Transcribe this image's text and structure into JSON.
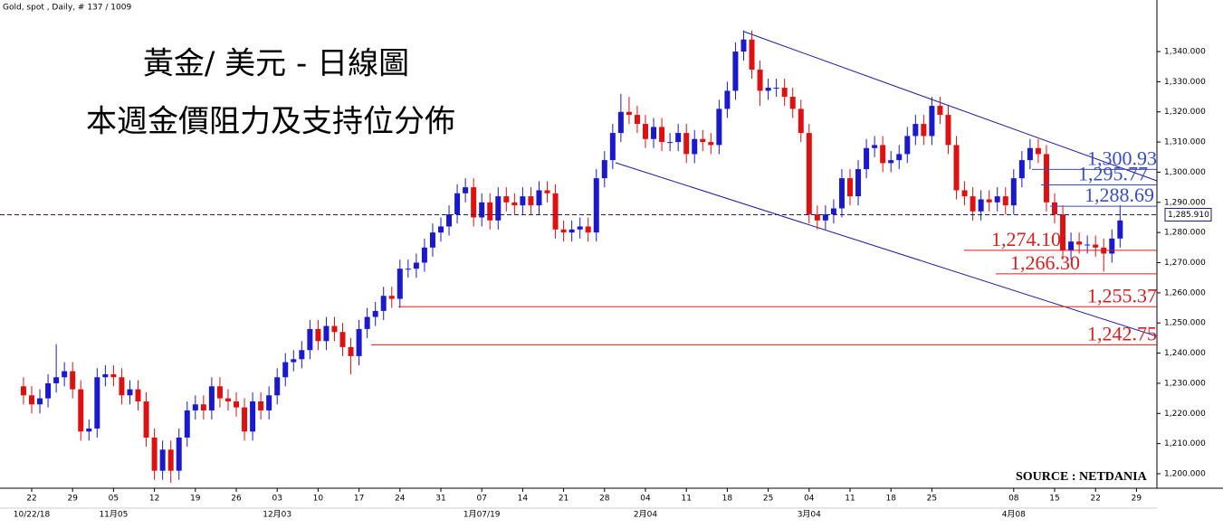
{
  "chart_data": {
    "type": "candlestick",
    "header": "Gold, spot , Daily, # 137 / 1009",
    "title": "黃金/ 美元 - 日線圖",
    "subtitle": "本週金價阻力及支持位分佈",
    "source": "SOURCE : NETDANIA",
    "up_color": "#1a1acc",
    "down_color": "#dd1111",
    "categories": [
      null,
      "22",
      null,
      null,
      null,
      null,
      "29",
      null,
      null,
      null,
      null,
      "05",
      null,
      null,
      null,
      null,
      "12",
      null,
      null,
      null,
      null,
      "19",
      null,
      null,
      null,
      null,
      "26",
      null,
      null,
      null,
      null,
      "03",
      null,
      null,
      null,
      null,
      "10",
      null,
      null,
      null,
      null,
      "17",
      null,
      null,
      null,
      null,
      "24",
      null,
      null,
      null,
      null,
      "31",
      null,
      null,
      null,
      null,
      "07",
      null,
      null,
      null,
      null,
      "14",
      null,
      null,
      null,
      null,
      "21",
      null,
      null,
      null,
      null,
      "28",
      null,
      null,
      null,
      null,
      "04",
      null,
      null,
      null,
      null,
      "11",
      null,
      null,
      null,
      null,
      "18",
      null,
      null,
      null,
      null,
      "25",
      null,
      null,
      null,
      null,
      "04",
      null,
      null,
      null,
      null,
      "11",
      null,
      null,
      null,
      null,
      "18",
      null,
      null,
      null,
      null,
      "25",
      null,
      null,
      null,
      null,
      null,
      null,
      null,
      null,
      null,
      "08",
      null,
      null,
      null,
      null,
      "15",
      null,
      null,
      null,
      null,
      "22",
      null,
      null,
      null,
      null,
      "29"
    ],
    "period_labels": [
      null,
      "10/22/18",
      null,
      null,
      null,
      null,
      null,
      null,
      null,
      null,
      null,
      "11月05",
      null,
      null,
      null,
      null,
      null,
      null,
      null,
      null,
      null,
      null,
      null,
      null,
      null,
      null,
      null,
      null,
      null,
      null,
      null,
      "12月03",
      null,
      null,
      null,
      null,
      null,
      null,
      null,
      null,
      null,
      null,
      null,
      null,
      null,
      null,
      null,
      null,
      null,
      null,
      null,
      null,
      null,
      null,
      null,
      null,
      "1月07/19",
      null,
      null,
      null,
      null,
      null,
      null,
      null,
      null,
      null,
      null,
      null,
      null,
      null,
      null,
      null,
      null,
      null,
      null,
      null,
      "2月04",
      null,
      null,
      null,
      null,
      null,
      null,
      null,
      null,
      null,
      null,
      null,
      null,
      null,
      null,
      null,
      null,
      null,
      null,
      null,
      "3月04",
      null,
      null,
      null,
      null,
      null,
      null,
      null,
      null,
      null,
      null,
      null,
      null,
      null,
      null,
      null,
      null,
      null,
      null,
      null,
      null,
      null,
      null,
      null,
      null,
      "4月08",
      null,
      null,
      null,
      null,
      null,
      null,
      null,
      null,
      null,
      null,
      null,
      null,
      null,
      null,
      null
    ],
    "open": [
      1229,
      1226,
      1223,
      1225,
      1230,
      1232,
      1234,
      1228,
      1214,
      1215,
      1232,
      1233,
      1232,
      1226,
      1228,
      1224,
      1212,
      1201,
      1208,
      1201,
      1212,
      1221,
      1223,
      1221,
      1229,
      1225,
      1224,
      1222,
      1214,
      1224,
      1221,
      1226,
      1232,
      1237,
      1238,
      1241,
      1248,
      1244,
      1249,
      1247,
      1242,
      1239,
      1248,
      1252,
      1254,
      1259,
      1258,
      1268,
      1268,
      1270,
      1275,
      1280,
      1282,
      1286,
      1293,
      1295,
      1285,
      1290,
      1284,
      1292,
      1290,
      1289,
      1292,
      1289,
      1294,
      1293,
      1281,
      1280,
      1281,
      1282,
      1280,
      1298,
      1304,
      1313,
      1320,
      1319,
      1316,
      1311,
      1315,
      1310,
      1310,
      1313,
      1306,
      1311,
      1310,
      1309,
      1321,
      1327,
      1340,
      1344,
      1334,
      1327,
      1328,
      1328,
      1325,
      1321,
      1313,
      1286,
      1284,
      1286,
      1288,
      1298,
      1292,
      1301,
      1308,
      1309,
      1303,
      1304,
      1306,
      1312,
      1316,
      1312,
      1322,
      1319,
      1309,
      1294,
      1292,
      1287,
      1291,
      1290,
      1292,
      1289,
      1298,
      1304,
      1308,
      1306,
      1290,
      1286,
      1274,
      1277,
      1276,
      1276,
      1275,
      1273,
      1278,
      null,
      null
    ],
    "high": [
      1232,
      1229,
      1228,
      1233,
      1243,
      1237,
      1237,
      1231,
      1218,
      1235,
      1236,
      1236,
      1235,
      1231,
      1231,
      1227,
      1215,
      1211,
      1211,
      1215,
      1224,
      1226,
      1226,
      1232,
      1232,
      1228,
      1227,
      1225,
      1227,
      1227,
      1229,
      1235,
      1240,
      1241,
      1244,
      1251,
      1251,
      1252,
      1252,
      1250,
      1245,
      1251,
      1255,
      1257,
      1262,
      1262,
      1271,
      1271,
      1273,
      1278,
      1283,
      1285,
      1289,
      1296,
      1298,
      1298,
      1293,
      1293,
      1295,
      1295,
      1293,
      1295,
      1295,
      1297,
      1297,
      1296,
      1284,
      1284,
      1285,
      1285,
      1301,
      1307,
      1316,
      1326,
      1325,
      1322,
      1319,
      1318,
      1318,
      1313,
      1316,
      1316,
      1314,
      1314,
      1313,
      1324,
      1330,
      1343,
      1347,
      1347,
      1337,
      1331,
      1331,
      1331,
      1328,
      1324,
      1316,
      1289,
      1289,
      1291,
      1301,
      1301,
      1304,
      1311,
      1312,
      1312,
      1307,
      1309,
      1315,
      1319,
      1319,
      1325,
      1325,
      1322,
      1312,
      1297,
      1295,
      1294,
      1294,
      1295,
      1295,
      1301,
      1307,
      1311,
      1311,
      1309,
      1293,
      1289,
      1280,
      1280,
      1279,
      1279,
      1278,
      1281,
      1289,
      null,
      null
    ],
    "low": [
      1223,
      1220,
      1220,
      1222,
      1227,
      1229,
      1225,
      1211,
      1211,
      1212,
      1229,
      1229,
      1223,
      1223,
      1221,
      1209,
      1198,
      1198,
      1197,
      1198,
      1209,
      1218,
      1218,
      1218,
      1222,
      1221,
      1219,
      1211,
      1211,
      1218,
      1218,
      1223,
      1229,
      1234,
      1235,
      1238,
      1241,
      1241,
      1244,
      1239,
      1233,
      1236,
      1245,
      1249,
      1251,
      1255,
      1255,
      1265,
      1265,
      1267,
      1272,
      1277,
      1279,
      1283,
      1290,
      1282,
      1282,
      1281,
      1281,
      1287,
      1286,
      1286,
      1286,
      1286,
      1290,
      1278,
      1277,
      1277,
      1278,
      1277,
      1277,
      1295,
      1301,
      1310,
      1316,
      1313,
      1308,
      1308,
      1307,
      1307,
      1307,
      1303,
      1303,
      1307,
      1306,
      1306,
      1318,
      1324,
      1337,
      1331,
      1322,
      1324,
      1325,
      1322,
      1318,
      1310,
      1283,
      1281,
      1281,
      1283,
      1285,
      1289,
      1289,
      1298,
      1305,
      1300,
      1300,
      1301,
      1303,
      1309,
      1309,
      1309,
      1316,
      1306,
      1291,
      1289,
      1284,
      1284,
      1287,
      1287,
      1286,
      1286,
      1295,
      1301,
      1303,
      1287,
      1283,
      1271,
      1271,
      1273,
      1273,
      1272,
      1267,
      1270,
      1275,
      null,
      null
    ],
    "close": [
      1226,
      1223,
      1225,
      1230,
      1232,
      1234,
      1228,
      1214,
      1215,
      1232,
      1233,
      1232,
      1226,
      1228,
      1224,
      1212,
      1201,
      1208,
      1201,
      1212,
      1221,
      1223,
      1221,
      1229,
      1225,
      1224,
      1222,
      1214,
      1224,
      1221,
      1226,
      1232,
      1237,
      1238,
      1241,
      1248,
      1244,
      1249,
      1247,
      1242,
      1239,
      1248,
      1252,
      1254,
      1259,
      1258,
      1268,
      1268,
      1270,
      1275,
      1280,
      1282,
      1286,
      1293,
      1295,
      1285,
      1290,
      1284,
      1292,
      1290,
      1289,
      1292,
      1289,
      1294,
      1293,
      1281,
      1280,
      1281,
      1282,
      1280,
      1298,
      1304,
      1313,
      1320,
      1319,
      1316,
      1311,
      1315,
      1310,
      1310,
      1313,
      1306,
      1311,
      1310,
      1309,
      1321,
      1327,
      1340,
      1344,
      1334,
      1327,
      1328,
      1328,
      1325,
      1321,
      1313,
      1286,
      1284,
      1286,
      1288,
      1298,
      1292,
      1301,
      1308,
      1309,
      1303,
      1304,
      1306,
      1312,
      1316,
      1312,
      1322,
      1319,
      1309,
      1294,
      1292,
      1287,
      1291,
      1290,
      1292,
      1289,
      1298,
      1304,
      1308,
      1306,
      1290,
      1286,
      1274,
      1277,
      1276,
      1276,
      1275,
      1273,
      1278,
      1284,
      null,
      null
    ],
    "ylim": [
      1195.2,
      1357.1
    ],
    "yticks": [
      {
        "value": 1200,
        "label": "1,200.000"
      },
      {
        "value": 1210,
        "label": "1,210.000"
      },
      {
        "value": 1220,
        "label": "1,220.000"
      },
      {
        "value": 1230,
        "label": "1,230.000"
      },
      {
        "value": 1240,
        "label": "1,240.000"
      },
      {
        "value": 1250,
        "label": "1,250.000"
      },
      {
        "value": 1260,
        "label": "1,260.000"
      },
      {
        "value": 1270,
        "label": "1,270.000"
      },
      {
        "value": 1280,
        "label": "1,280.000"
      },
      {
        "value": 1290,
        "label": "1,290.000"
      },
      {
        "value": 1300,
        "label": "1,300.000"
      },
      {
        "value": 1310,
        "label": "1,310.000"
      },
      {
        "value": 1320,
        "label": "1,320.000"
      },
      {
        "value": 1330,
        "label": "1,330.000"
      },
      {
        "value": 1340,
        "label": "1,340.000"
      }
    ],
    "last_price": {
      "value": 1285.91,
      "label": "1,285.910"
    },
    "levels": [
      {
        "value": 1300.93,
        "label": "1,300.93",
        "color": "#3a4dbf"
      },
      {
        "value": 1295.77,
        "label": "1,295.77",
        "color": "#3a4dbf"
      },
      {
        "value": 1288.69,
        "label": "1,288.69",
        "color": "#3a4dbf"
      },
      {
        "value": 1274.1,
        "label": "1,274.10",
        "color": "#d42020"
      },
      {
        "value": 1266.3,
        "label": "1,266.30",
        "color": "#d42020"
      },
      {
        "value": 1255.37,
        "label": "1,255.37",
        "color": "#d42020"
      },
      {
        "value": 1242.75,
        "label": "1,242.75",
        "color": "#d42020"
      }
    ]
  }
}
